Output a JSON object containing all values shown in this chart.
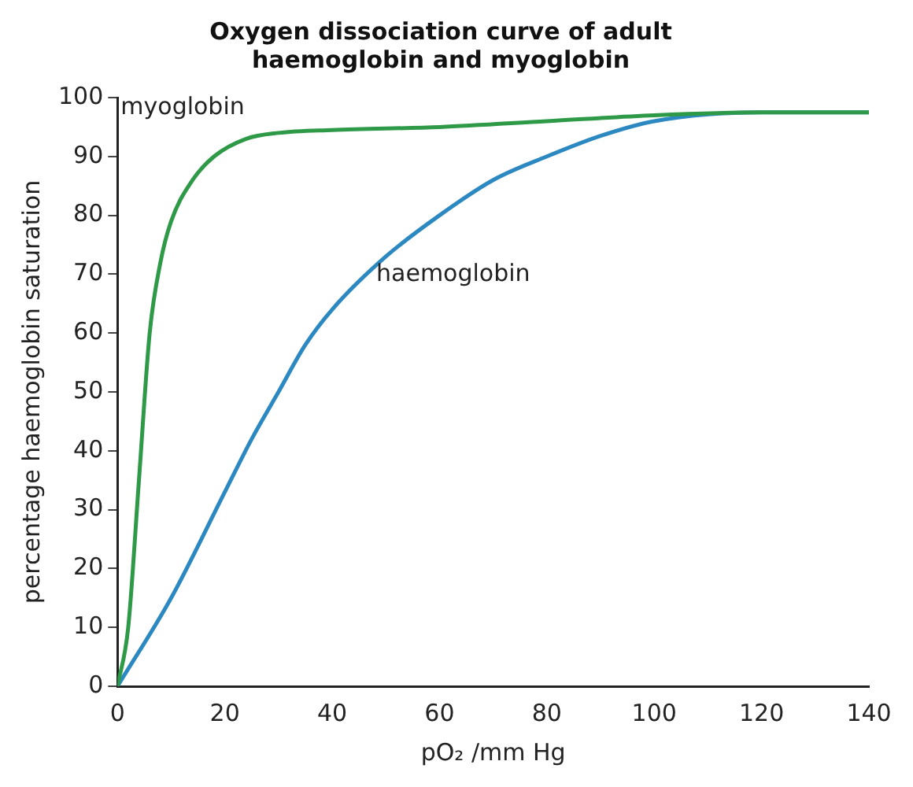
{
  "chart_data": {
    "type": "line",
    "title": "Oxygen dissociation curve of adult\nhaemoglobin and myoglobin",
    "xlabel": "pO₂ /mm Hg",
    "ylabel": "percentage haemoglobin saturation",
    "xlim": [
      0,
      140
    ],
    "xticks": [
      0,
      20,
      40,
      60,
      80,
      100,
      120,
      140
    ],
    "ylim": [
      0,
      100
    ],
    "yticks": [
      0,
      10,
      20,
      30,
      40,
      50,
      60,
      70,
      80,
      90,
      100
    ],
    "grid": false,
    "legend": false,
    "marker": "none",
    "line_style": "solid",
    "series": [
      {
        "name": "myoglobin",
        "color": "#2e9a48",
        "x": [
          0,
          2,
          4,
          6,
          8,
          10,
          14,
          18,
          24,
          30,
          40,
          60,
          80,
          100,
          120,
          140
        ],
        "values": [
          0,
          10,
          35,
          60,
          72,
          79,
          86,
          90,
          93,
          94,
          94.5,
          95,
          96,
          97,
          97.5,
          97.5
        ]
      },
      {
        "name": "haemoglobin",
        "color": "#2b88c0",
        "x": [
          0,
          10,
          20,
          25,
          30,
          35,
          40,
          50,
          60,
          70,
          80,
          90,
          100,
          120,
          140
        ],
        "values": [
          0,
          15,
          33,
          42,
          50,
          58,
          64,
          73,
          80,
          86,
          90,
          93.5,
          96,
          97.5,
          97.5
        ]
      }
    ]
  }
}
